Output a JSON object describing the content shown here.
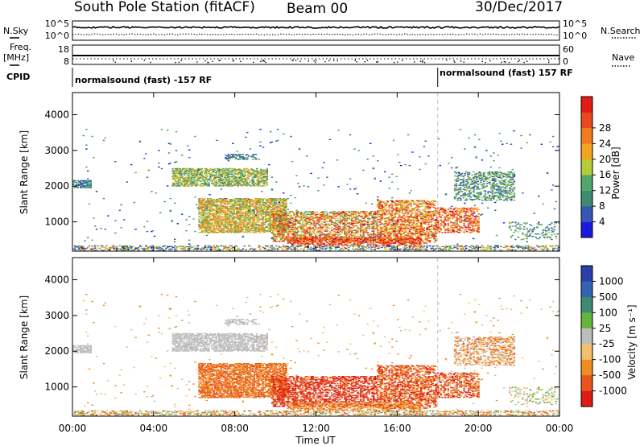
{
  "header": {
    "station": "South Pole Station (fitACF)",
    "beam": "Beam 00",
    "date": "30/Dec/2017"
  },
  "left_labels": {
    "nsky": "N.Sky",
    "freq": "Freq.",
    "freq_unit": "[MHz]",
    "cpid": "CPID"
  },
  "right_labels": {
    "nsearch": "N.Search",
    "nave": "Nave"
  },
  "strip_ticks": {
    "noise_left": [
      "10^5",
      "10^0"
    ],
    "noise_right": [
      "10^5",
      "10^0"
    ],
    "freq_left": [
      "18",
      "8"
    ],
    "nave_right": [
      "60",
      "0"
    ]
  },
  "cpid": {
    "left": "normalsound (fast) -157 RF",
    "right": "normalsound (fast) 157 RF",
    "switch_hour": 18
  },
  "colors": {
    "power": [
      "#1a1adf",
      "#3656b4",
      "#3f8a72",
      "#52a86a",
      "#b4cc3a",
      "#f4a51f",
      "#f07a1d",
      "#e84a1e",
      "#e21b14"
    ],
    "velocity": [
      "#2b3fa8",
      "#3463b3",
      "#3f8a72",
      "#63b53b",
      "#bdbdbd",
      "#f2c06d",
      "#ef8d22",
      "#e8551c",
      "#dd1a14"
    ]
  },
  "chart_data": [
    {
      "type": "heatmap",
      "name": "power",
      "ylabel": "Slant Range [km]",
      "xlabel": "Time UT",
      "ylim": [
        180,
        4620
      ],
      "xlim_hours": [
        0,
        24
      ],
      "y_ticks": [
        "1000",
        "2000",
        "3000",
        "4000"
      ],
      "x_ticks": [
        "00:00",
        "04:00",
        "08:00",
        "12:00",
        "16:00",
        "20:00",
        "00:00"
      ],
      "colorbar_label": "Power [dB]",
      "colorbar_ticks": [
        "4",
        "8",
        "12",
        "16",
        "20",
        "24",
        "28"
      ]
    },
    {
      "type": "heatmap",
      "name": "velocity",
      "ylabel": "Slant Range [km]",
      "xlabel": "Time UT",
      "ylim": [
        180,
        4620
      ],
      "xlim_hours": [
        0,
        24
      ],
      "y_ticks": [
        "1000",
        "2000",
        "3000",
        "4000"
      ],
      "x_ticks": [
        "00:00",
        "04:00",
        "08:00",
        "12:00",
        "16:00",
        "20:00",
        "00:00"
      ],
      "colorbar_label": "Velocity [m s⁻¹]",
      "colorbar_ticks": [
        "1000",
        "500",
        "100",
        "25",
        "-25",
        "-100",
        "-500",
        "-1000"
      ]
    }
  ],
  "scatter_regions": [
    {
      "t0": 0.0,
      "t1": 0.9,
      "r0": 1950,
      "r1": 2150,
      "pl": [
        1,
        3
      ],
      "vl": [
        4,
        4
      ],
      "d": 0.7
    },
    {
      "t0": 4.9,
      "t1": 9.6,
      "r0": 2000,
      "r1": 2500,
      "pl": [
        2,
        5
      ],
      "vl": [
        4,
        4
      ],
      "d": 0.55
    },
    {
      "t0": 6.2,
      "t1": 10.5,
      "r0": 700,
      "r1": 1650,
      "pl": [
        3,
        6
      ],
      "vl": [
        6,
        7
      ],
      "d": 0.6
    },
    {
      "t0": 9.8,
      "t1": 15.0,
      "r0": 450,
      "r1": 1300,
      "pl": [
        3,
        8
      ],
      "vl": [
        7,
        8
      ],
      "d": 0.45
    },
    {
      "t0": 15.0,
      "t1": 17.9,
      "r0": 400,
      "r1": 1600,
      "pl": [
        4,
        8
      ],
      "vl": [
        6,
        8
      ],
      "d": 0.45
    },
    {
      "t0": 17.9,
      "t1": 20.0,
      "r0": 700,
      "r1": 1400,
      "pl": [
        5,
        8
      ],
      "vl": [
        6,
        8
      ],
      "d": 0.35
    },
    {
      "t0": 18.8,
      "t1": 21.8,
      "r0": 1600,
      "r1": 2400,
      "pl": [
        1,
        4
      ],
      "vl": [
        4,
        7
      ],
      "d": 0.35
    },
    {
      "t0": 7.5,
      "t1": 9.2,
      "r0": 2750,
      "r1": 2900,
      "pl": [
        1,
        2
      ],
      "vl": [
        4,
        4
      ],
      "d": 0.35
    },
    {
      "t0": 0.0,
      "t1": 24.0,
      "r0": 190,
      "r1": 330,
      "pl": [
        0,
        6
      ],
      "vl": [
        3,
        7
      ],
      "d": 0.35
    },
    {
      "t0": 10.5,
      "t1": 17.2,
      "r0": 350,
      "r1": 560,
      "pl": [
        6,
        8
      ],
      "vl": [
        5,
        7
      ],
      "d": 0.5
    },
    {
      "t0": 21.5,
      "t1": 23.9,
      "r0": 500,
      "r1": 1000,
      "pl": [
        1,
        4
      ],
      "vl": [
        3,
        5
      ],
      "d": 0.15
    },
    {
      "t0": 0.5,
      "t1": 24.0,
      "r0": 350,
      "r1": 3600,
      "pl": [
        0,
        3
      ],
      "vl": [
        4,
        6
      ],
      "d": 0.008
    }
  ]
}
